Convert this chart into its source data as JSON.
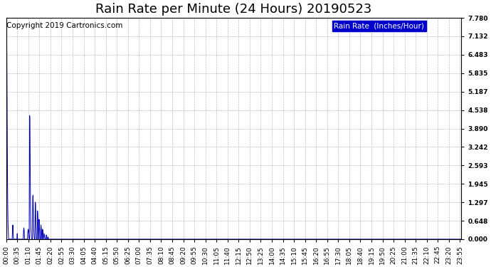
{
  "title": "Rain Rate per Minute (24 Hours) 20190523",
  "copyright_text": "Copyright 2019 Cartronics.com",
  "legend_label": "Rain Rate  (Inches/Hour)",
  "line_color": "#0000bb",
  "background_color": "#ffffff",
  "grid_color": "#999999",
  "legend_bg": "#0000cc",
  "legend_fg": "#ffffff",
  "yticks": [
    0.0,
    0.648,
    1.297,
    1.945,
    2.593,
    3.242,
    3.89,
    4.538,
    5.187,
    5.835,
    6.483,
    7.132,
    7.78
  ],
  "ymax": 7.78,
  "ymin": 0.0,
  "total_minutes": 1440,
  "title_fontsize": 13,
  "copyright_fontsize": 7.5,
  "tick_fontsize": 6.5,
  "legend_fontsize": 7.5,
  "xtick_interval": 35,
  "spike_data": [
    [
      1,
      7.78
    ],
    [
      2,
      6.8
    ],
    [
      3,
      4.5
    ],
    [
      4,
      2.5
    ],
    [
      5,
      1.2
    ],
    [
      6,
      0.5
    ],
    [
      7,
      0.2
    ],
    [
      20,
      0.3
    ],
    [
      21,
      0.5
    ],
    [
      22,
      0.3
    ],
    [
      35,
      0.2
    ],
    [
      55,
      0.3
    ],
    [
      56,
      0.4
    ],
    [
      57,
      0.3
    ],
    [
      68,
      0.2
    ],
    [
      69,
      0.3
    ],
    [
      70,
      0.35
    ],
    [
      71,
      0.25
    ],
    [
      72,
      0.15
    ],
    [
      74,
      4.35
    ],
    [
      75,
      4.3
    ],
    [
      76,
      2.5
    ],
    [
      77,
      1.0
    ],
    [
      78,
      0.4
    ],
    [
      79,
      0.2
    ],
    [
      84,
      1.5
    ],
    [
      85,
      1.55
    ],
    [
      86,
      0.9
    ],
    [
      87,
      0.4
    ],
    [
      88,
      0.15
    ],
    [
      92,
      1.3
    ],
    [
      93,
      1.25
    ],
    [
      94,
      0.6
    ],
    [
      95,
      0.25
    ],
    [
      99,
      1.0
    ],
    [
      100,
      0.9
    ],
    [
      101,
      0.4
    ],
    [
      104,
      0.7
    ],
    [
      105,
      0.6
    ],
    [
      106,
      0.3
    ],
    [
      110,
      0.5
    ],
    [
      111,
      0.4
    ],
    [
      112,
      0.2
    ],
    [
      115,
      0.35
    ],
    [
      116,
      0.3
    ],
    [
      117,
      0.15
    ],
    [
      120,
      0.2
    ],
    [
      121,
      0.15
    ],
    [
      122,
      0.1
    ],
    [
      127,
      0.15
    ],
    [
      128,
      0.12
    ],
    [
      132,
      0.08
    ],
    [
      133,
      0.06
    ]
  ]
}
